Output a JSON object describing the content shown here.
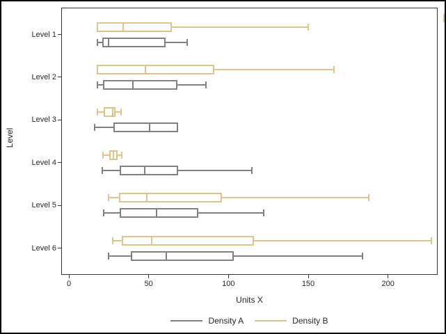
{
  "window": {
    "background": "#ffffff",
    "border_color": "#000000"
  },
  "chart_data": {
    "type": "boxplot",
    "orientation": "horizontal",
    "title": "",
    "xlabel": "Units X",
    "ylabel": "Level",
    "categories": [
      "Level 1",
      "Level 2",
      "Level 3",
      "Level 4",
      "Level 5",
      "Level 6"
    ],
    "xticks": [
      0,
      50,
      100,
      150,
      200
    ],
    "xlim": [
      -4.8,
      231.1
    ],
    "grid": false,
    "legend_position": "bottom",
    "series": [
      {
        "name": "Density A",
        "color": "#808080",
        "boxes": [
          {
            "min": 18,
            "q1": 21,
            "median": 25,
            "q3": 60.5,
            "max": 74
          },
          {
            "min": 18,
            "q1": 21.5,
            "median": 40,
            "q3": 68,
            "max": 86
          },
          {
            "min": 16,
            "q1": 28,
            "median": 50.5,
            "q3": 68.5,
            "max": 68.5
          },
          {
            "min": 21,
            "q1": 32,
            "median": 47.5,
            "q3": 68.5,
            "max": 114.5
          },
          {
            "min": 22,
            "q1": 32,
            "median": 55,
            "q3": 81,
            "max": 122
          },
          {
            "min": 25,
            "q1": 39,
            "median": 61,
            "q3": 103.5,
            "max": 184
          }
        ]
      },
      {
        "name": "Density B",
        "color": "#DFC489",
        "boxes": [
          {
            "min": 17.5,
            "q1": 17.5,
            "median": 34,
            "q3": 64.5,
            "max": 150
          },
          {
            "min": 17.5,
            "q1": 17.5,
            "median": 48,
            "q3": 91,
            "max": 166
          },
          {
            "min": 18,
            "q1": 22,
            "median": 27.5,
            "q3": 29,
            "max": 32.5
          },
          {
            "min": 21.5,
            "q1": 25.5,
            "median": 28,
            "q3": 30.5,
            "max": 33
          },
          {
            "min": 25,
            "q1": 31.5,
            "median": 49,
            "q3": 96,
            "max": 188
          },
          {
            "min": 27.5,
            "q1": 33,
            "median": 52,
            "q3": 116,
            "max": 227
          }
        ]
      }
    ]
  }
}
